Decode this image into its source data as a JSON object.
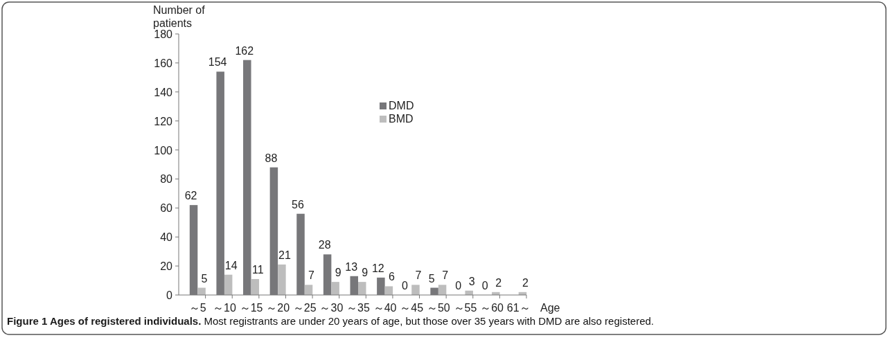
{
  "chart_data": {
    "type": "bar",
    "title": "Figure 1 Ages of registered individuals.",
    "subtitle": "Most registrants are under 20 years of age, but those over 35 years with DMD are also registered.",
    "xlabel": "Age",
    "ylabel": "Number of patients",
    "categories": [
      "～5",
      "～10",
      "～15",
      "～20",
      "～25",
      "～30",
      "～35",
      "～40",
      "～45",
      "～50",
      "～55",
      "～60",
      "61～"
    ],
    "series": [
      {
        "name": "DMD",
        "color": "#77777a",
        "values": [
          62,
          154,
          162,
          88,
          56,
          28,
          13,
          12,
          0,
          5,
          0,
          0,
          null
        ]
      },
      {
        "name": "BMD",
        "color": "#bdbdbd",
        "values": [
          5,
          14,
          11,
          21,
          7,
          9,
          9,
          6,
          7,
          7,
          3,
          2,
          2
        ]
      }
    ],
    "ylim": [
      0,
      180
    ],
    "yticks": [
      0,
      20,
      40,
      60,
      80,
      100,
      120,
      140,
      160,
      180
    ],
    "data_labels": true,
    "legend": "top right",
    "grid": false
  }
}
